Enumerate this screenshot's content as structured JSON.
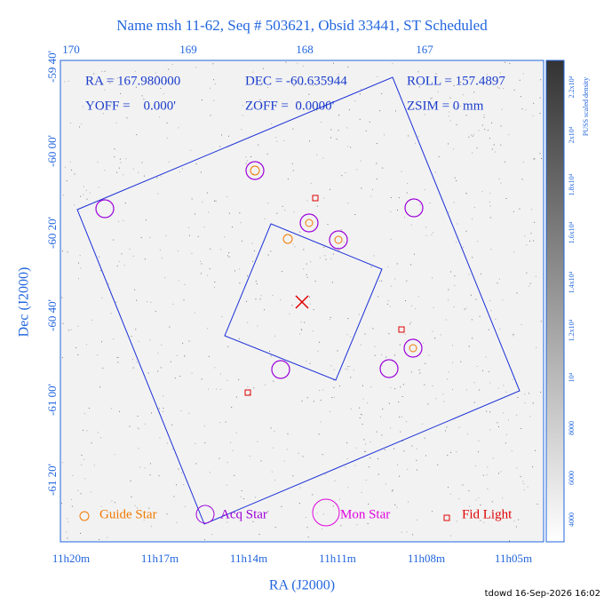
{
  "title": "Name msh 11-62, Seq # 503621, Obsid 33441, ST Scheduled",
  "top_ticks": [
    "170",
    "169",
    "168",
    "167"
  ],
  "bottom_ticks": [
    "11h20m",
    "11h17m",
    "11h14m",
    "11h11m",
    "11h08m",
    "11h05m"
  ],
  "left_ticks": [
    "-59 40'",
    "-60 00'",
    "-60 20'",
    "-60 40'",
    "-61 00'",
    "-61 20'"
  ],
  "x_label": "RA (J2000)",
  "y_label": "Dec (J2000)",
  "info": [
    "RA = 167.980000",
    "DEC = -60.635944",
    "ROLL = 157.4897",
    "YOFF =    0.000'",
    "ZOFF =  0.0000'",
    "ZSIM = 0 mm"
  ],
  "legend": [
    "Guide Star",
    "Acq Star",
    "Mon Star",
    "Fid Light"
  ],
  "colorbar_ticks": [
    "4000",
    "6000",
    "8000",
    "10⁴",
    "1.2x10⁴",
    "1.4x10⁴",
    "1.6x10⁴",
    "1.8x10⁴",
    "2x10⁴",
    "2.2x10⁴"
  ],
  "colorbar_label": "PUSS scaled density",
  "footer": "tdowd 16-Sep-2026 16:02"
}
